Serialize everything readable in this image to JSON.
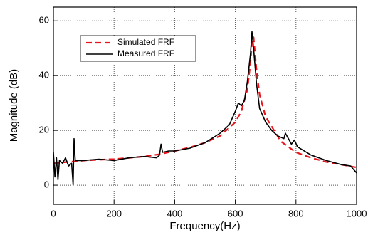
{
  "chart_data": {
    "type": "line",
    "x_label": "Frequency(Hz)",
    "y_label": "Magnitude (dB)",
    "xlim": [
      0,
      1000
    ],
    "ylim": [
      -7,
      65
    ],
    "xticks": [
      0,
      200,
      400,
      600,
      800,
      1000
    ],
    "yticks": [
      0,
      20,
      40,
      60
    ],
    "grid": true,
    "legend": "upper-left",
    "series": [
      {
        "name": "Simulated FRF",
        "color": "#e8141b",
        "dashed": true,
        "x": [
          0,
          50,
          100,
          150,
          200,
          250,
          300,
          350,
          400,
          450,
          500,
          550,
          600,
          620,
          640,
          650,
          655,
          660,
          670,
          680,
          700,
          750,
          800,
          850,
          900,
          950,
          1000
        ],
        "values": [
          8,
          8.5,
          9,
          9.3,
          9.5,
          10,
          10.5,
          11.3,
          12.5,
          13.8,
          15.5,
          18,
          23,
          27,
          35,
          45,
          52,
          54,
          42,
          33,
          25,
          16,
          12,
          10,
          8.5,
          7.5,
          6.5
        ]
      },
      {
        "name": "Measured FRF",
        "color": "#000000",
        "dashed": false,
        "x": [
          0,
          5,
          10,
          15,
          20,
          30,
          40,
          50,
          60,
          65,
          68,
          72,
          100,
          150,
          200,
          250,
          300,
          340,
          350,
          355,
          360,
          380,
          400,
          450,
          500,
          550,
          580,
          600,
          610,
          620,
          630,
          640,
          650,
          655,
          660,
          670,
          680,
          700,
          720,
          740,
          760,
          765,
          775,
          785,
          795,
          805,
          850,
          900,
          950,
          980,
          1000
        ],
        "values": [
          12,
          3,
          10,
          2,
          9,
          8,
          10,
          7,
          8,
          0,
          17,
          9,
          9,
          9.5,
          9,
          10,
          10.5,
          10,
          11,
          15,
          12,
          12.5,
          12.5,
          13.5,
          15.5,
          19,
          22,
          27,
          30,
          29,
          31,
          38,
          48,
          56,
          50,
          37,
          28,
          23,
          20,
          18,
          17,
          19,
          17,
          15,
          16.5,
          14,
          11,
          9,
          7.5,
          7,
          4.5
        ]
      }
    ]
  }
}
